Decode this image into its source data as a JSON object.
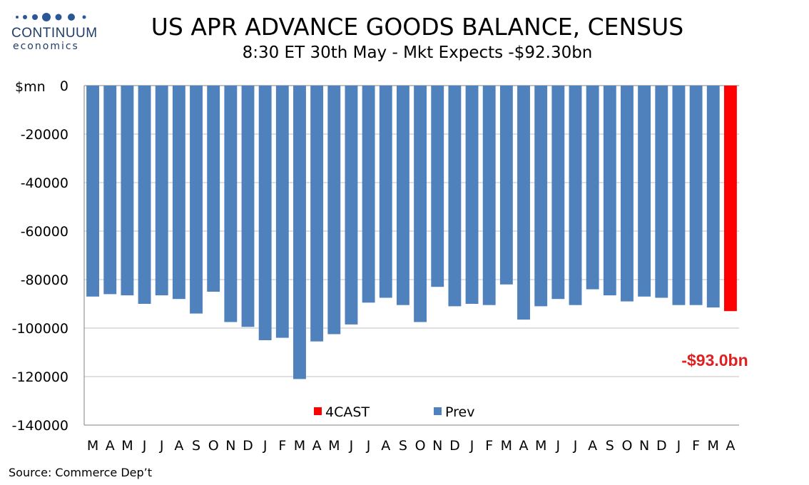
{
  "logo": {
    "name": "CONTINUUM",
    "sub": "economics"
  },
  "title": "US APR ADVANCE GOODS BALANCE, CENSUS",
  "subtitle": "8:30 ET 30th May - Mkt Expects -$92.30bn",
  "source": "Source: Commerce Dep’t",
  "forecast_label": "-$93.0bn",
  "colors": {
    "prev": "#4f81bd",
    "forecast": "#ff0000",
    "forecast_label": "#e02020",
    "grid": "#c0c0c0"
  },
  "chart_data": {
    "type": "bar",
    "ylabel": "$mn",
    "ylim": [
      -140000,
      0
    ],
    "yticks": [
      0,
      -20000,
      -40000,
      -60000,
      -80000,
      -100000,
      -120000,
      -140000
    ],
    "grid": true,
    "legend_placement": "bottom-center",
    "legend": [
      "4CAST",
      "Prev"
    ],
    "categories": [
      "M",
      "A",
      "M",
      "J",
      "J",
      "A",
      "S",
      "O",
      "N",
      "D",
      "J",
      "F",
      "M",
      "A",
      "M",
      "J",
      "J",
      "A",
      "S",
      "O",
      "N",
      "D",
      "J",
      "F",
      "M",
      "A",
      "M",
      "J",
      "J",
      "A",
      "S",
      "O",
      "N",
      "D",
      "J",
      "F",
      "M",
      "A"
    ],
    "series": [
      {
        "name": "Prev",
        "values": [
          -87000,
          -86000,
          -86500,
          -90000,
          -86500,
          -88000,
          -94000,
          -85000,
          -97500,
          -99500,
          -105000,
          -104000,
          -121000,
          -105500,
          -102500,
          -98500,
          -89500,
          -87500,
          -90500,
          -97500,
          -83000,
          -91000,
          -90000,
          -90500,
          -82000,
          -96500,
          -91000,
          -88000,
          -90500,
          -84000,
          -86500,
          -89000,
          -87000,
          -87500,
          -90500,
          -90500,
          -91500,
          null
        ]
      },
      {
        "name": "4CAST",
        "values": [
          null,
          null,
          null,
          null,
          null,
          null,
          null,
          null,
          null,
          null,
          null,
          null,
          null,
          null,
          null,
          null,
          null,
          null,
          null,
          null,
          null,
          null,
          null,
          null,
          null,
          null,
          null,
          null,
          null,
          null,
          null,
          null,
          null,
          null,
          null,
          null,
          null,
          -93000
        ]
      }
    ]
  }
}
